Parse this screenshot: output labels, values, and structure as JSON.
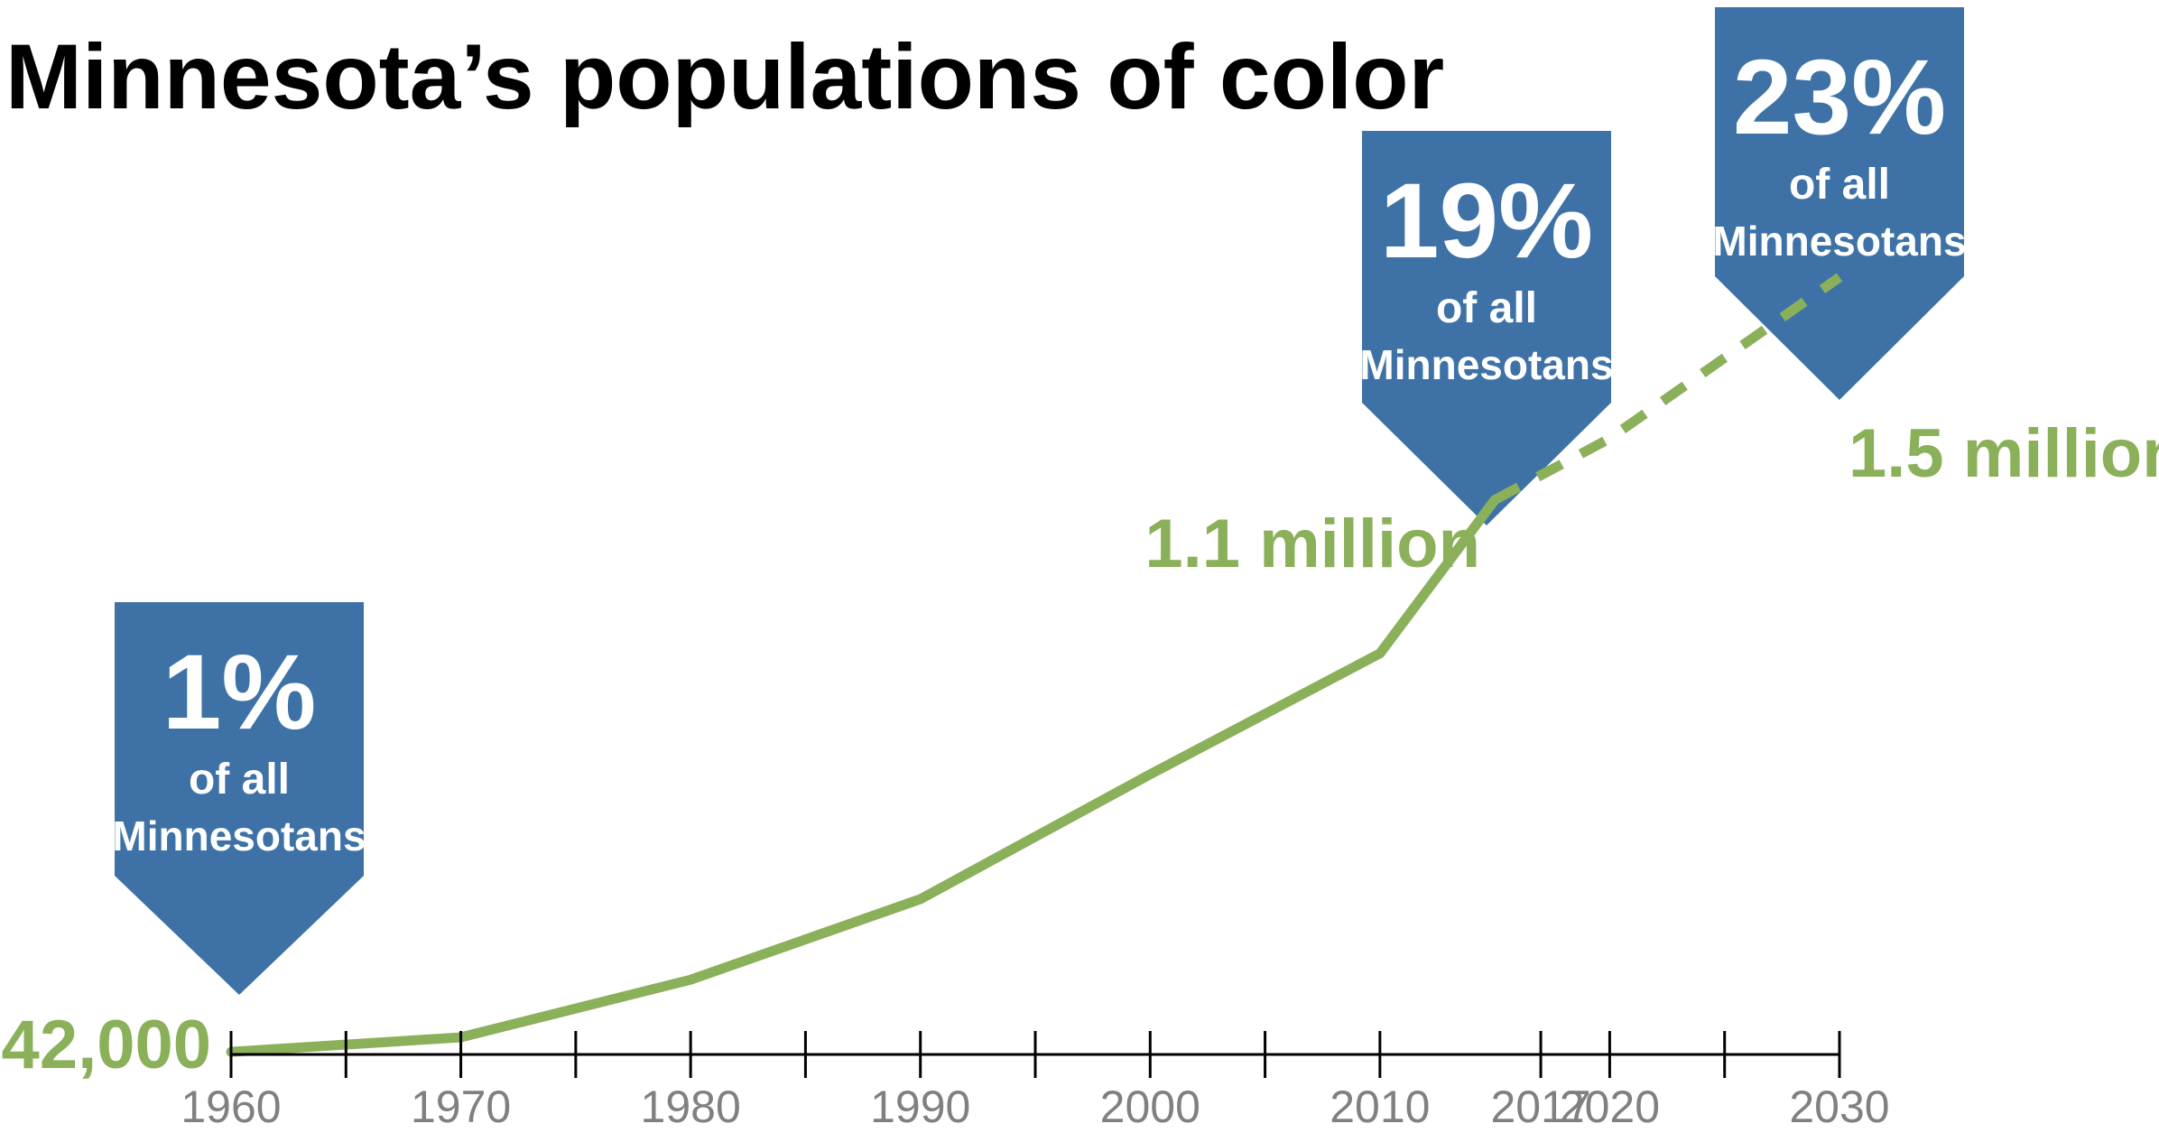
{
  "chart_data": {
    "type": "line",
    "title": "Minnesota’s populations of color",
    "x_ticks": [
      1960,
      1965,
      1970,
      1975,
      1980,
      1985,
      1990,
      1995,
      2000,
      2005,
      2010,
      2017,
      2020,
      2025,
      2030
    ],
    "x_tick_labels": [
      "1960",
      "1970",
      "1980",
      "1990",
      "2000",
      "2010",
      "2017",
      "2020",
      "2030"
    ],
    "series": [
      {
        "style": "solid",
        "points": [
          {
            "x": 1960,
            "y": 42000
          },
          {
            "x": 1970,
            "y": 80000
          },
          {
            "x": 1980,
            "y": 230000
          },
          {
            "x": 1990,
            "y": 440000
          },
          {
            "x": 2000,
            "y": 765000
          },
          {
            "x": 2010,
            "y": 1080000
          },
          {
            "x": 2015,
            "y": 1480000
          }
        ]
      },
      {
        "style": "dashed",
        "points": [
          {
            "x": 2015,
            "y": 1480000
          },
          {
            "x": 2020,
            "y": 1640000
          },
          {
            "x": 2030,
            "y": 2060000
          }
        ]
      }
    ],
    "xlim": [
      1960,
      2030
    ],
    "ylim": [
      0,
      2500000
    ],
    "data_labels": [
      {
        "text": "42,000"
      },
      {
        "text": "1.1 million"
      },
      {
        "text": "1.5 million"
      }
    ],
    "callouts": [
      {
        "percent": "1%",
        "line1": "of all",
        "line2": "Minnesotans"
      },
      {
        "percent": "19%",
        "line1": "of all",
        "line2": "Minnesotans"
      },
      {
        "percent": "23%",
        "line1": "of all",
        "line2": "Minnesotans"
      }
    ],
    "colors": {
      "line": "#8BB05A",
      "callout": "#3E72A6",
      "callout_text": "#FFFFFF",
      "axis": "#000000",
      "tick_label": "#808080",
      "title": "#000000"
    }
  }
}
